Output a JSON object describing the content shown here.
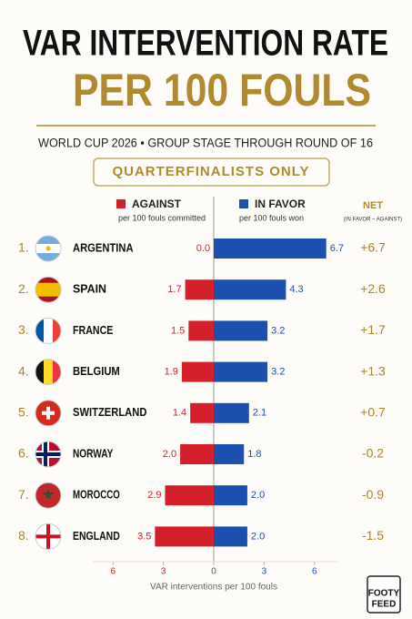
{
  "chart_data": {
    "type": "diverging_bar",
    "title": "VAR INTERVENTION RATE",
    "title_line2": "PER 100 FOULS",
    "subtitle": "WORLD CUP 2026 • GROUP STAGE THROUGH ROUND OF 16",
    "badge": "QUARTERFINALISTS ONLY",
    "ranks": [
      "1.",
      "2.",
      "3.",
      "4.",
      "5.",
      "6.",
      "7.",
      "8."
    ],
    "categories": [
      "ARGENTINA",
      "SPAIN",
      "FRANCE",
      "BELGIUM",
      "SWITZERLAND",
      "NORWAY",
      "MOROCCO",
      "ENGLAND"
    ],
    "series": [
      {
        "name": "AGAINST",
        "description": "per 100 fouls committed",
        "color": "#d3202a",
        "direction": "left",
        "values": [
          0.0,
          1.7,
          1.5,
          1.9,
          1.4,
          2.0,
          2.9,
          3.5
        ],
        "value_labels": [
          "0.0",
          "1.7",
          "1.5",
          "1.9",
          "1.4",
          "2.0",
          "2.9",
          "3.5"
        ]
      },
      {
        "name": "IN FAVOR",
        "description": "per 100 fouls won",
        "color": "#1d4fae",
        "direction": "right",
        "values": [
          6.7,
          4.3,
          3.2,
          3.2,
          2.1,
          1.8,
          2.0,
          2.0
        ],
        "value_labels": [
          "6.7",
          "4.3",
          "3.2",
          "3.2",
          "2.1",
          "1.8",
          "2.0",
          "2.0"
        ]
      }
    ],
    "net": {
      "name": "NET",
      "description": "(IN FAVOR – AGAINST)",
      "color": "#a8862e",
      "values": [
        6.7,
        2.6,
        1.7,
        1.3,
        0.7,
        -0.2,
        -0.9,
        -1.5
      ],
      "value_labels": [
        "+6.7",
        "+2.6",
        "+1.7",
        "+1.3",
        "+0.7",
        "-0.2",
        "-0.9",
        "-1.5"
      ]
    },
    "xlim": [
      -6.5,
      6.5
    ],
    "xticks": [
      {
        "value": -6,
        "label": "6"
      },
      {
        "value": -3,
        "label": "3"
      },
      0,
      3,
      6
    ],
    "xlabel": "VAR interventions per 100 fouls",
    "logo": [
      "FOOTY",
      "FEED"
    ]
  }
}
